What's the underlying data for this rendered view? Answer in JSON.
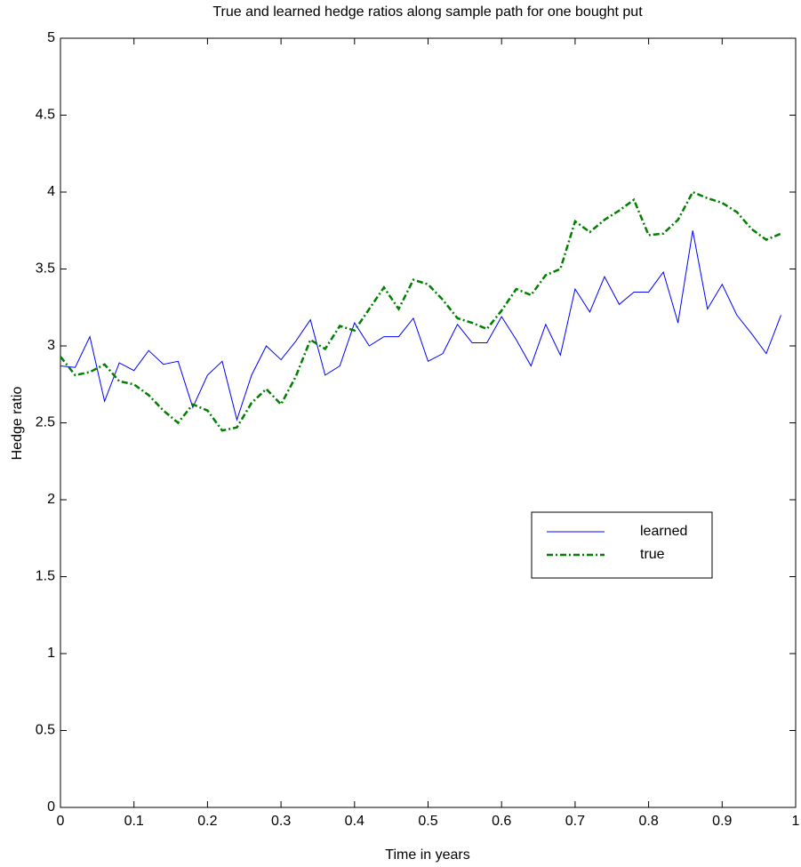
{
  "chart_data": {
    "type": "line",
    "title": "True and learned hedge ratios along sample path for one bought put",
    "x_label": "Time in years",
    "y_label": "Hedge ratio",
    "x": [
      0,
      0.02,
      0.04,
      0.06,
      0.08,
      0.1,
      0.12,
      0.14,
      0.16,
      0.18,
      0.2,
      0.22,
      0.24,
      0.26,
      0.28,
      0.3,
      0.32,
      0.34,
      0.36,
      0.38,
      0.4,
      0.42,
      0.44,
      0.46,
      0.48,
      0.5,
      0.52,
      0.54,
      0.56,
      0.58,
      0.6,
      0.62,
      0.64,
      0.66,
      0.68,
      0.7,
      0.72,
      0.74,
      0.76,
      0.78,
      0.8,
      0.82,
      0.84,
      0.86,
      0.88,
      0.9,
      0.92,
      0.94,
      0.96,
      0.98
    ],
    "series": [
      {
        "name": "learned",
        "color": "#0000ff",
        "dash": "solid",
        "values": [
          2.87,
          2.86,
          3.06,
          2.64,
          2.89,
          2.84,
          2.97,
          2.88,
          2.9,
          2.6,
          2.81,
          2.9,
          2.52,
          2.81,
          3.0,
          2.91,
          3.03,
          3.17,
          2.81,
          2.87,
          3.15,
          3.0,
          3.06,
          3.06,
          3.18,
          2.9,
          2.95,
          3.14,
          3.02,
          3.02,
          3.19,
          3.04,
          2.87,
          3.14,
          2.94,
          3.37,
          3.22,
          3.45,
          3.27,
          3.35,
          3.35,
          3.48,
          3.15,
          3.75,
          3.24,
          3.4,
          3.2,
          3.08,
          2.95,
          3.2
        ]
      },
      {
        "name": "true",
        "color": "#007f00",
        "dash": "dashdot",
        "values": [
          2.93,
          2.81,
          2.83,
          2.88,
          2.77,
          2.75,
          2.68,
          2.58,
          2.5,
          2.62,
          2.58,
          2.45,
          2.47,
          2.63,
          2.72,
          2.62,
          2.8,
          3.04,
          2.98,
          3.13,
          3.1,
          3.24,
          3.38,
          3.24,
          3.43,
          3.4,
          3.3,
          3.18,
          3.15,
          3.11,
          3.23,
          3.37,
          3.33,
          3.46,
          3.5,
          3.81,
          3.74,
          3.82,
          3.88,
          3.95,
          3.72,
          3.73,
          3.82,
          4.0,
          3.96,
          3.93,
          3.87,
          3.76,
          3.69,
          3.73
        ]
      }
    ],
    "xlim": [
      0,
      1
    ],
    "xticks": [
      0,
      0.1,
      0.2,
      0.3,
      0.4,
      0.5,
      0.6,
      0.7,
      0.8,
      0.9,
      1
    ],
    "ylim": [
      0,
      5
    ],
    "yticks": [
      0,
      0.5,
      1,
      1.5,
      2,
      2.5,
      3,
      3.5,
      4,
      4.5,
      5
    ],
    "grid": false
  }
}
